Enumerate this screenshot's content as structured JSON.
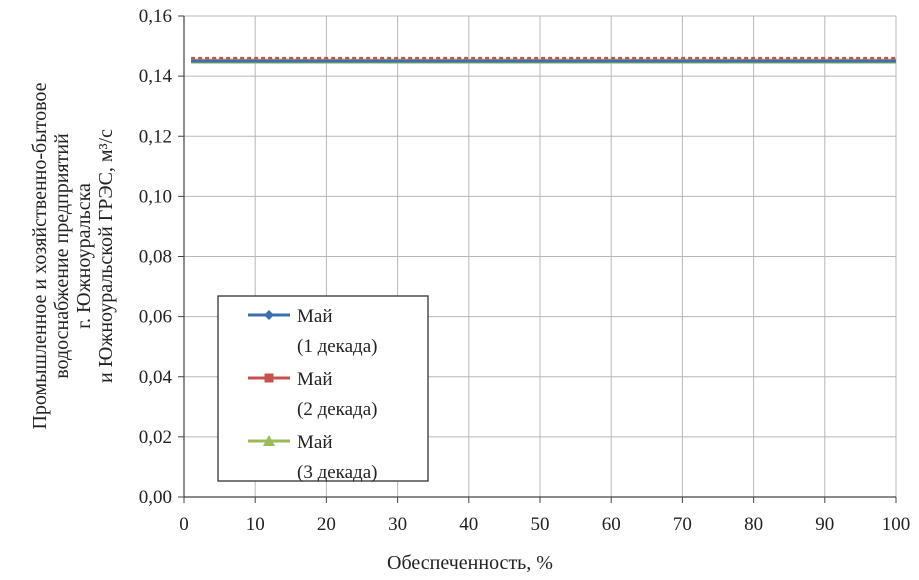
{
  "chart_data": {
    "type": "line",
    "x": [
      1,
      10,
      20,
      30,
      40,
      50,
      60,
      70,
      80,
      90,
      100
    ],
    "xlim": [
      0,
      100
    ],
    "ylim": [
      0,
      0.16
    ],
    "xticks": [
      "0",
      "10",
      "20",
      "30",
      "40",
      "50",
      "60",
      "70",
      "80",
      "90",
      "100"
    ],
    "yticks": [
      "0,00",
      "0,02",
      "0,04",
      "0,06",
      "0,08",
      "0,10",
      "0,12",
      "0,14",
      "0,16"
    ],
    "xlabel": "Обеспеченность, %",
    "ylabel_lines": [
      "Промышленное и хозяйственно-бытовое",
      "водоснабжение предприятий",
      "г. Южноуральска",
      "и Южноуральской ГРЭС, м³/с"
    ],
    "grid": true,
    "legend_position": "lower-left",
    "series": [
      {
        "name_lines": [
          "Май",
          "(1 декада)"
        ],
        "color": "#3a6fb0",
        "marker": "diamond",
        "values": [
          0.145,
          0.145,
          0.145,
          0.145,
          0.145,
          0.145,
          0.145,
          0.145,
          0.145,
          0.145,
          0.145
        ]
      },
      {
        "name_lines": [
          "Май",
          "(2 декада)"
        ],
        "color": "#c9504f",
        "marker": "square",
        "values": [
          0.146,
          0.146,
          0.146,
          0.146,
          0.146,
          0.146,
          0.146,
          0.146,
          0.146,
          0.146,
          0.146
        ]
      },
      {
        "name_lines": [
          "Май",
          "(3 декада)"
        ],
        "color": "#9bbb59",
        "marker": "triangle",
        "values": [
          0.145,
          0.145,
          0.145,
          0.145,
          0.145,
          0.145,
          0.145,
          0.145,
          0.145,
          0.145,
          0.145
        ]
      }
    ]
  }
}
